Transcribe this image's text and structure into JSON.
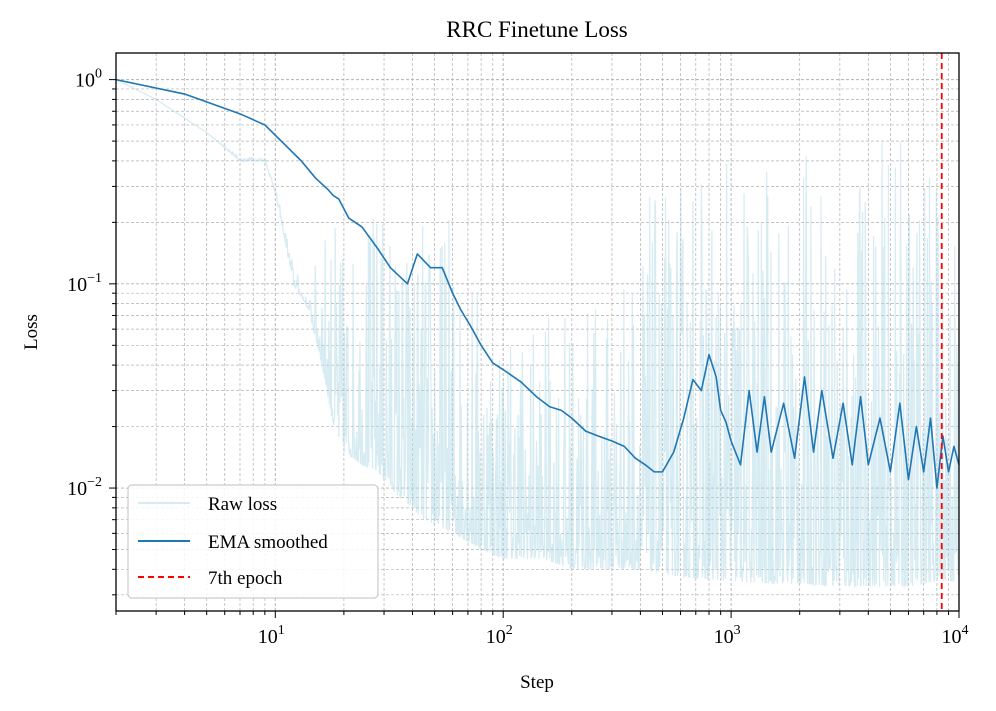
{
  "chart_data": {
    "type": "line",
    "title": "RRC Finetune Loss",
    "xlabel": "Step",
    "ylabel": "Loss",
    "xscale": "log",
    "yscale": "log",
    "xlim": [
      2,
      10000
    ],
    "ylim": [
      0.0025,
      1.35
    ],
    "grid": true,
    "legend_position": "lower-left",
    "x_ticks": [
      {
        "base": "10",
        "exp": "1"
      },
      {
        "base": "10",
        "exp": "2"
      },
      {
        "base": "10",
        "exp": "3"
      },
      {
        "base": "10",
        "exp": "4"
      }
    ],
    "y_ticks": [
      {
        "base": "10",
        "exp": "0"
      },
      {
        "base": "10",
        "exp": "−1"
      },
      {
        "base": "10",
        "exp": "−2"
      }
    ],
    "vline": {
      "name": "7th epoch",
      "x": 8400,
      "color": "#ff0000"
    },
    "series": [
      {
        "name": "Raw loss",
        "color": "#add8e6",
        "alpha": 0.5,
        "style": "noisy-envelope",
        "x": [
          2,
          3,
          5,
          7,
          9,
          10,
          12,
          14,
          16,
          18,
          20,
          24,
          28,
          35,
          45,
          60,
          80,
          100,
          150,
          200,
          300,
          400,
          500,
          700,
          1000,
          1500,
          2000,
          3000,
          4000,
          5000,
          6000,
          7000,
          8000,
          9000,
          10000
        ],
        "high": [
          1.0,
          0.8,
          0.55,
          0.42,
          0.42,
          0.3,
          0.13,
          0.08,
          0.2,
          0.22,
          0.15,
          0.18,
          0.3,
          0.2,
          0.23,
          0.25,
          0.11,
          0.08,
          0.07,
          0.08,
          0.09,
          0.25,
          0.3,
          0.4,
          0.4,
          0.4,
          0.42,
          0.45,
          0.48,
          0.5,
          0.5,
          0.48,
          0.45,
          0.4,
          0.35
        ],
        "low": [
          1.0,
          0.8,
          0.55,
          0.4,
          0.4,
          0.28,
          0.1,
          0.075,
          0.04,
          0.02,
          0.015,
          0.013,
          0.012,
          0.009,
          0.007,
          0.006,
          0.005,
          0.0045,
          0.0045,
          0.004,
          0.004,
          0.004,
          0.0038,
          0.0036,
          0.0035,
          0.0034,
          0.0034,
          0.0033,
          0.0033,
          0.0033,
          0.0033,
          0.0034,
          0.0035,
          0.0035,
          0.0035
        ]
      },
      {
        "name": "EMA smoothed",
        "color": "#1f77b4",
        "style": "line",
        "x": [
          2,
          4,
          7,
          9,
          13,
          15,
          17,
          18,
          19,
          21,
          24,
          28,
          32,
          38,
          42,
          48,
          54,
          60,
          65,
          72,
          80,
          90,
          100,
          120,
          140,
          160,
          180,
          200,
          230,
          260,
          300,
          340,
          380,
          420,
          460,
          500,
          560,
          620,
          680,
          740,
          800,
          860,
          900,
          950,
          1000,
          1100,
          1200,
          1300,
          1400,
          1500,
          1700,
          1900,
          2100,
          2300,
          2500,
          2800,
          3100,
          3400,
          3700,
          4000,
          4500,
          5000,
          5500,
          6000,
          6500,
          7000,
          7500,
          8000,
          8500,
          9000,
          9500,
          10000
        ],
        "y": [
          1.0,
          0.85,
          0.68,
          0.6,
          0.4,
          0.33,
          0.29,
          0.27,
          0.26,
          0.21,
          0.19,
          0.15,
          0.12,
          0.1,
          0.14,
          0.12,
          0.12,
          0.09,
          0.075,
          0.062,
          0.05,
          0.041,
          0.038,
          0.033,
          0.028,
          0.025,
          0.024,
          0.022,
          0.019,
          0.018,
          0.017,
          0.016,
          0.014,
          0.013,
          0.012,
          0.012,
          0.015,
          0.022,
          0.034,
          0.03,
          0.045,
          0.035,
          0.024,
          0.021,
          0.017,
          0.013,
          0.03,
          0.015,
          0.028,
          0.015,
          0.026,
          0.014,
          0.035,
          0.015,
          0.03,
          0.014,
          0.026,
          0.013,
          0.028,
          0.013,
          0.022,
          0.012,
          0.026,
          0.011,
          0.02,
          0.012,
          0.022,
          0.01,
          0.018,
          0.012,
          0.016,
          0.013
        ]
      }
    ]
  }
}
